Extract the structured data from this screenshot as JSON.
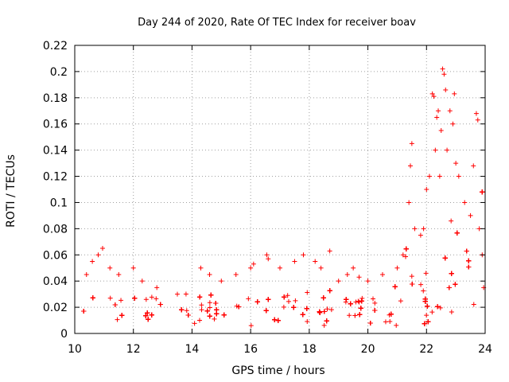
{
  "chart_data": {
    "type": "scatter",
    "title": "Day 244 of 2020, Rate Of TEC Index for receiver boav",
    "xlabel": "GPS time / hours",
    "ylabel": "ROTI / TECUs",
    "xlim": [
      10,
      24
    ],
    "ylim": [
      0,
      0.22
    ],
    "x_ticks": [
      10,
      12,
      14,
      16,
      18,
      20,
      22,
      24
    ],
    "x_tick_labels": [
      "10",
      "12",
      "14",
      "16",
      "18",
      "20",
      "22",
      "24"
    ],
    "y_ticks": [
      0,
      0.02,
      0.04,
      0.06,
      0.08,
      0.1,
      0.12,
      0.14,
      0.16,
      0.18,
      0.2,
      0.22
    ],
    "y_tick_labels": [
      "0",
      "0.02",
      "0.04",
      "0.06",
      "0.08",
      "0.1",
      "0.12",
      "0.14",
      "0.16",
      "0.18",
      "0.2",
      "0.22"
    ],
    "grid": true,
    "marker": "+",
    "color": "#ff0000",
    "series": [
      {
        "name": "ROTI",
        "profile_description_x_hours": [
          10.3,
          21.0,
          21.3,
          22.0,
          22.5,
          23.0,
          23.5,
          24.0
        ],
        "points": [
          [
            10.4,
            0.045
          ],
          [
            10.6,
            0.055
          ],
          [
            10.8,
            0.06
          ],
          [
            10.95,
            0.065
          ],
          [
            11.2,
            0.05
          ],
          [
            11.5,
            0.045
          ],
          [
            12.0,
            0.05
          ],
          [
            12.3,
            0.04
          ],
          [
            12.8,
            0.035
          ],
          [
            13.5,
            0.03
          ],
          [
            14.3,
            0.05
          ],
          [
            14.6,
            0.045
          ],
          [
            15.0,
            0.04
          ],
          [
            15.5,
            0.045
          ],
          [
            16.0,
            0.05
          ],
          [
            16.1,
            0.053
          ],
          [
            16.55,
            0.06
          ],
          [
            16.6,
            0.057
          ],
          [
            17.0,
            0.05
          ],
          [
            17.5,
            0.055
          ],
          [
            17.8,
            0.06
          ],
          [
            18.2,
            0.055
          ],
          [
            18.4,
            0.05
          ],
          [
            18.7,
            0.063
          ],
          [
            19.0,
            0.04
          ],
          [
            19.3,
            0.045
          ],
          [
            19.5,
            0.05
          ],
          [
            19.7,
            0.043
          ],
          [
            20.0,
            0.04
          ],
          [
            20.5,
            0.045
          ],
          [
            21.0,
            0.05
          ],
          [
            21.2,
            0.06
          ],
          [
            21.4,
            0.1
          ],
          [
            21.45,
            0.128
          ],
          [
            21.5,
            0.145
          ],
          [
            21.6,
            0.08
          ],
          [
            21.8,
            0.075
          ],
          [
            21.9,
            0.08
          ],
          [
            22.0,
            0.11
          ],
          [
            22.1,
            0.12
          ],
          [
            22.2,
            0.183
          ],
          [
            22.25,
            0.181
          ],
          [
            22.3,
            0.14
          ],
          [
            22.35,
            0.165
          ],
          [
            22.4,
            0.17
          ],
          [
            22.45,
            0.12
          ],
          [
            22.5,
            0.155
          ],
          [
            22.55,
            0.202
          ],
          [
            22.6,
            0.198
          ],
          [
            22.65,
            0.186
          ],
          [
            22.7,
            0.14
          ],
          [
            22.8,
            0.17
          ],
          [
            22.9,
            0.16
          ],
          [
            22.95,
            0.183
          ],
          [
            23.0,
            0.13
          ],
          [
            23.1,
            0.12
          ],
          [
            23.3,
            0.1
          ],
          [
            23.5,
            0.09
          ],
          [
            23.6,
            0.128
          ],
          [
            23.7,
            0.168
          ],
          [
            23.75,
            0.163
          ],
          [
            23.8,
            0.08
          ],
          [
            23.9,
            0.06
          ],
          [
            23.95,
            0.035
          ]
        ]
      }
    ]
  }
}
